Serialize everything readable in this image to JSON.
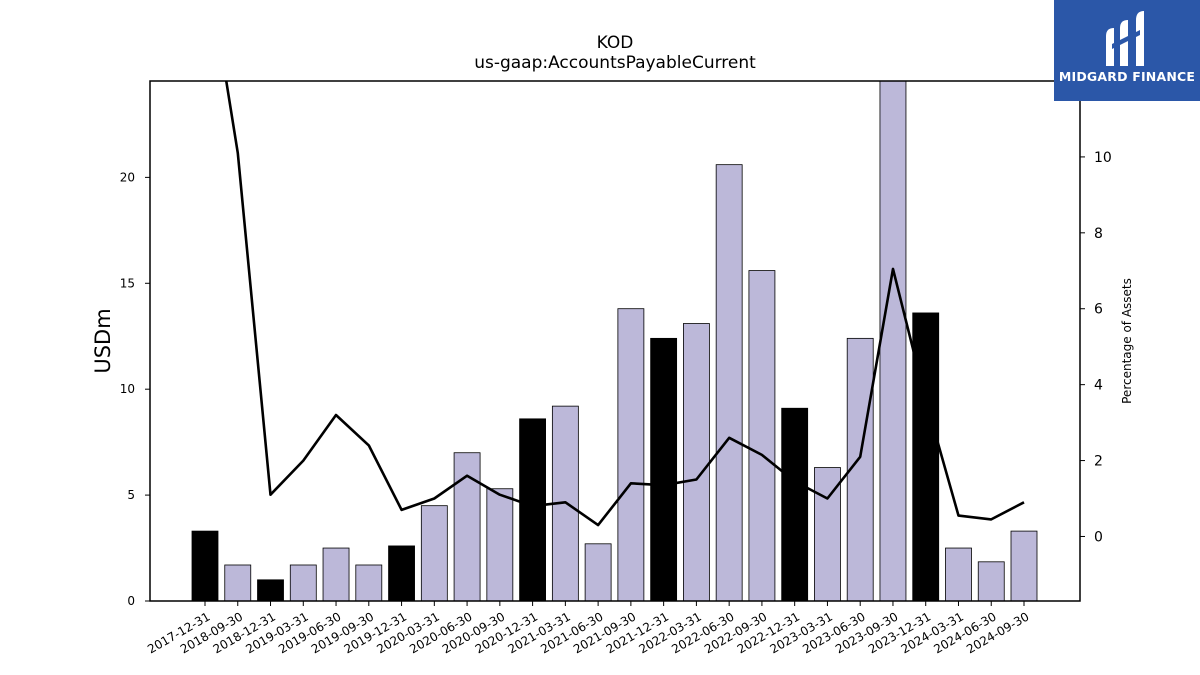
{
  "brand": {
    "name": "MIDGARD FINANCE",
    "bg_color": "#2b57a8"
  },
  "chart_data": {
    "type": "bar",
    "title": "KOD",
    "subtitle": "us-gaap:AccountsPayableCurrent",
    "ylabel": "USDm",
    "y2label": "Percentage of Assets",
    "categories": [
      "2017-12-31",
      "2018-09-30",
      "2018-12-31",
      "2019-03-31",
      "2019-06-30",
      "2019-09-30",
      "2019-12-31",
      "2020-03-31",
      "2020-06-30",
      "2020-09-30",
      "2020-12-31",
      "2021-03-31",
      "2021-06-30",
      "2021-09-30",
      "2021-12-31",
      "2022-03-31",
      "2022-06-30",
      "2022-09-30",
      "2022-12-31",
      "2023-03-31",
      "2023-06-30",
      "2023-09-30",
      "2023-12-31",
      "2024-03-31",
      "2024-06-30",
      "2024-09-30"
    ],
    "values": [
      3.3,
      1.7,
      1.0,
      1.7,
      2.5,
      1.7,
      2.6,
      4.5,
      7.0,
      5.3,
      8.6,
      9.2,
      2.7,
      13.8,
      12.4,
      13.1,
      20.6,
      15.6,
      9.1,
      6.3,
      12.4,
      24.6,
      13.6,
      2.5,
      1.85,
      3.3
    ],
    "highlight": [
      true,
      false,
      true,
      false,
      false,
      false,
      true,
      false,
      false,
      false,
      true,
      false,
      false,
      false,
      true,
      false,
      false,
      false,
      true,
      false,
      false,
      false,
      true,
      false,
      false,
      false
    ],
    "series": [
      {
        "name": "",
        "axis": "right",
        "type": "line",
        "values": [
          15.5,
          10.1,
          1.1,
          2.0,
          3.2,
          2.4,
          0.7,
          1.0,
          1.6,
          1.1,
          0.8,
          0.9,
          0.3,
          1.4,
          1.35,
          1.5,
          2.6,
          2.15,
          1.45,
          1.0,
          2.1,
          7.05,
          3.6,
          0.55,
          0.45,
          0.9
        ]
      }
    ],
    "ylim": [
      0,
      24.55
    ],
    "y2lim": [
      -1.7,
      12.0
    ],
    "yticks": [
      0,
      5,
      10,
      15,
      20
    ],
    "y2ticks": [
      0,
      2,
      4,
      6,
      8,
      10
    ],
    "colors": {
      "bar": "#bcb8d9",
      "bar_highlight": "#000000",
      "line": "#000000"
    },
    "grid": false,
    "legend": "none"
  }
}
